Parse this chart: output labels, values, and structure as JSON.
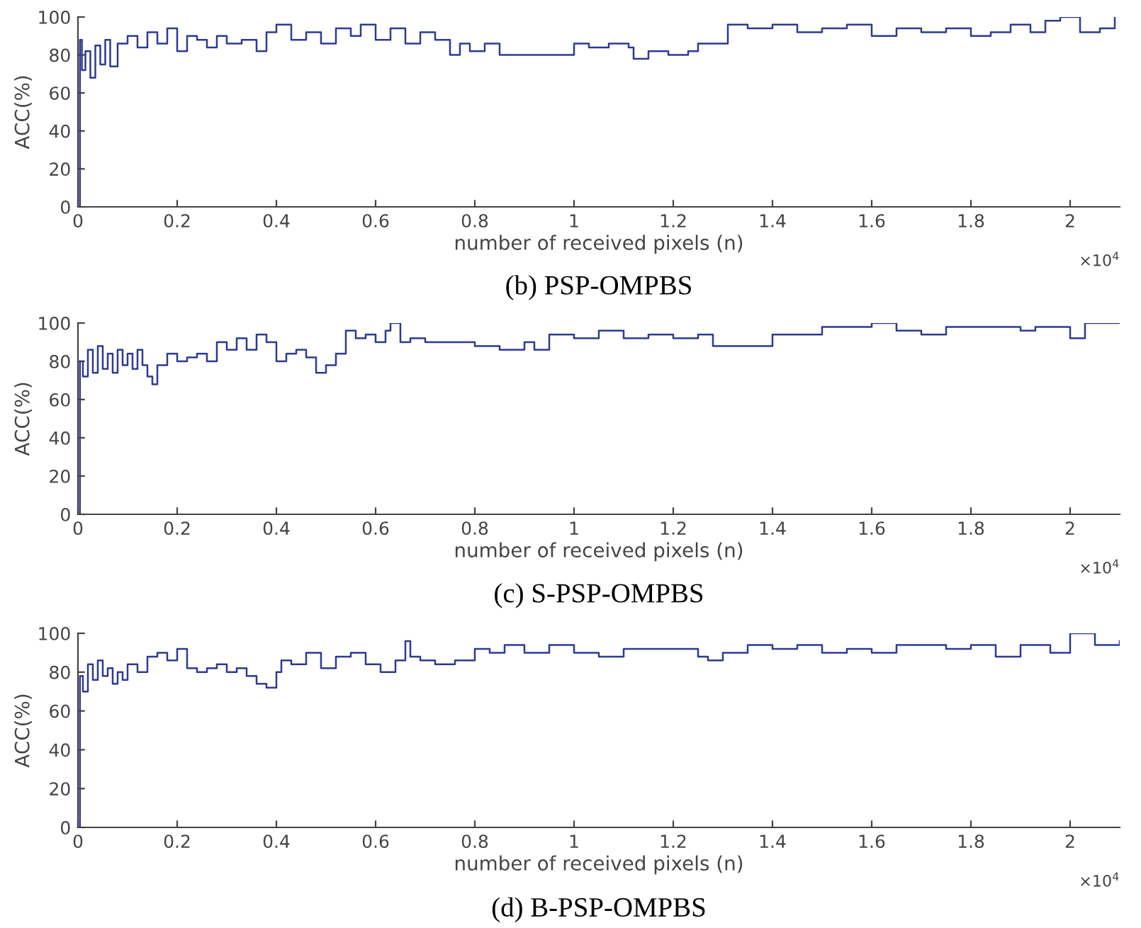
{
  "chart_data": [
    {
      "type": "step",
      "title": "(b) PSP-OMPBS",
      "xlabel": "number of received pixels (n)",
      "ylabel": "ACC(%)",
      "annotations": [
        "×10$^{4}$"
      ],
      "xlim": [
        0,
        2.1
      ],
      "xticks": [
        0,
        0.2,
        0.4,
        0.6,
        0.8,
        1,
        1.2,
        1.4,
        1.6,
        1.8,
        2
      ],
      "ylim": [
        0,
        100
      ],
      "yticks": [
        0,
        20,
        40,
        60,
        80,
        100
      ],
      "series": [
        {
          "color": "#2e3a92",
          "x": [
            0,
            0.004,
            0.008,
            0.015,
            0.025,
            0.035,
            0.045,
            0.055,
            0.065,
            0.08,
            0.1,
            0.12,
            0.14,
            0.16,
            0.18,
            0.2,
            0.22,
            0.24,
            0.26,
            0.28,
            0.3,
            0.33,
            0.36,
            0.38,
            0.4,
            0.43,
            0.46,
            0.49,
            0.52,
            0.55,
            0.57,
            0.6,
            0.63,
            0.66,
            0.69,
            0.72,
            0.75,
            0.77,
            0.79,
            0.82,
            0.85,
            0.89,
            0.95,
            1.0,
            1.03,
            1.07,
            1.11,
            1.12,
            1.15,
            1.19,
            1.23,
            1.25,
            1.29,
            1.31,
            1.35,
            1.4,
            1.45,
            1.5,
            1.55,
            1.6,
            1.65,
            1.7,
            1.75,
            1.8,
            1.84,
            1.88,
            1.92,
            1.95,
            1.98,
            2.02,
            2.06,
            2.09
          ],
          "values": [
            0,
            88,
            72,
            82,
            68,
            85,
            75,
            88,
            74,
            86,
            90,
            84,
            92,
            86,
            94,
            82,
            90,
            88,
            84,
            90,
            86,
            88,
            82,
            92,
            96,
            88,
            92,
            86,
            94,
            90,
            96,
            88,
            94,
            86,
            92,
            88,
            80,
            86,
            82,
            86,
            80,
            80,
            80,
            86,
            84,
            86,
            84,
            78,
            82,
            80,
            82,
            86,
            86,
            96,
            94,
            96,
            92,
            94,
            96,
            90,
            94,
            92,
            94,
            90,
            92,
            96,
            92,
            98,
            100,
            92,
            94,
            100
          ]
        }
      ]
    },
    {
      "type": "step",
      "title": "(c) S-PSP-OMPBS",
      "xlabel": "number of received pixels (n)",
      "ylabel": "ACC(%)",
      "annotations": [
        "×10$^{4}$"
      ],
      "xlim": [
        0,
        2.1
      ],
      "xticks": [
        0,
        0.2,
        0.4,
        0.6,
        0.8,
        1,
        1.2,
        1.4,
        1.6,
        1.8,
        2
      ],
      "ylim": [
        0,
        100
      ],
      "yticks": [
        0,
        20,
        40,
        60,
        80,
        100
      ],
      "series": [
        {
          "color": "#2e3a92",
          "x": [
            0,
            0.004,
            0.01,
            0.02,
            0.03,
            0.04,
            0.05,
            0.06,
            0.07,
            0.08,
            0.09,
            0.1,
            0.11,
            0.12,
            0.13,
            0.14,
            0.15,
            0.16,
            0.18,
            0.2,
            0.22,
            0.24,
            0.26,
            0.28,
            0.3,
            0.32,
            0.34,
            0.36,
            0.38,
            0.4,
            0.42,
            0.44,
            0.46,
            0.48,
            0.5,
            0.52,
            0.54,
            0.56,
            0.58,
            0.6,
            0.62,
            0.63,
            0.65,
            0.67,
            0.7,
            0.75,
            0.8,
            0.85,
            0.9,
            0.92,
            0.95,
            1.0,
            1.05,
            1.1,
            1.15,
            1.2,
            1.25,
            1.28,
            1.35,
            1.4,
            1.45,
            1.5,
            1.55,
            1.6,
            1.65,
            1.7,
            1.75,
            1.8,
            1.85,
            1.9,
            1.93,
            2.0,
            2.03,
            2.1
          ],
          "values": [
            0,
            80,
            72,
            86,
            74,
            88,
            76,
            84,
            74,
            86,
            78,
            84,
            76,
            86,
            78,
            72,
            68,
            78,
            84,
            80,
            82,
            84,
            80,
            90,
            86,
            92,
            86,
            94,
            90,
            80,
            84,
            86,
            82,
            74,
            78,
            84,
            96,
            92,
            94,
            90,
            96,
            100,
            90,
            92,
            90,
            90,
            88,
            86,
            90,
            86,
            94,
            92,
            96,
            92,
            94,
            92,
            94,
            88,
            88,
            94,
            94,
            98,
            98,
            100,
            96,
            94,
            98,
            98,
            98,
            96,
            98,
            92,
            100,
            100
          ]
        }
      ]
    },
    {
      "type": "step",
      "title": "(d) B-PSP-OMPBS",
      "xlabel": "number of received pixels (n)",
      "ylabel": "ACC(%)",
      "annotations": [
        "×10$^{4}$"
      ],
      "xlim": [
        0,
        2.1
      ],
      "xticks": [
        0,
        0.2,
        0.4,
        0.6,
        0.8,
        1,
        1.2,
        1.4,
        1.6,
        1.8,
        2
      ],
      "ylim": [
        0,
        100
      ],
      "yticks": [
        0,
        20,
        40,
        60,
        80,
        100
      ],
      "series": [
        {
          "color": "#2e3a92",
          "x": [
            0,
            0.004,
            0.01,
            0.02,
            0.03,
            0.04,
            0.05,
            0.06,
            0.07,
            0.08,
            0.09,
            0.1,
            0.12,
            0.14,
            0.16,
            0.18,
            0.2,
            0.22,
            0.24,
            0.26,
            0.28,
            0.3,
            0.32,
            0.34,
            0.36,
            0.38,
            0.4,
            0.41,
            0.43,
            0.46,
            0.49,
            0.52,
            0.55,
            0.58,
            0.61,
            0.64,
            0.66,
            0.67,
            0.69,
            0.72,
            0.76,
            0.8,
            0.83,
            0.86,
            0.9,
            0.95,
            1.0,
            1.05,
            1.1,
            1.2,
            1.25,
            1.27,
            1.3,
            1.35,
            1.4,
            1.45,
            1.5,
            1.55,
            1.6,
            1.65,
            1.7,
            1.75,
            1.8,
            1.85,
            1.9,
            1.96,
            2.0,
            2.05,
            2.1
          ],
          "values": [
            0,
            78,
            70,
            84,
            76,
            86,
            78,
            82,
            74,
            80,
            76,
            84,
            80,
            88,
            90,
            86,
            92,
            82,
            80,
            82,
            84,
            80,
            82,
            78,
            74,
            72,
            80,
            86,
            84,
            90,
            82,
            88,
            90,
            84,
            80,
            86,
            96,
            88,
            86,
            84,
            86,
            92,
            90,
            94,
            90,
            94,
            90,
            88,
            92,
            92,
            88,
            86,
            90,
            94,
            92,
            94,
            90,
            92,
            90,
            94,
            94,
            92,
            94,
            88,
            94,
            90,
            100,
            94,
            96
          ]
        }
      ]
    }
  ]
}
